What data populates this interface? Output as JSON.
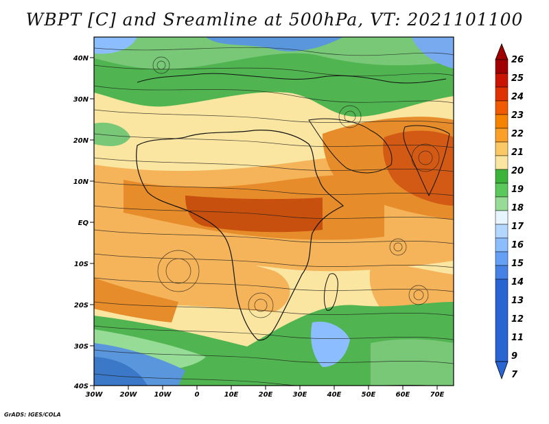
{
  "title": "WBPT [C] and Sreamline at 500hPa, VT: 2021101100",
  "footer": "GrADS: IGES/COLA",
  "map": {
    "lon_labels": [
      "30W",
      "20W",
      "10W",
      "0",
      "10E",
      "20E",
      "30E",
      "40E",
      "50E",
      "60E",
      "70E"
    ],
    "lat_labels": [
      "40N",
      "30N",
      "20N",
      "10N",
      "EQ",
      "10S",
      "20S",
      "30S",
      "40S"
    ]
  },
  "colorbar": {
    "levels": [
      "26",
      "25",
      "24",
      "23",
      "22",
      "21",
      "20",
      "19",
      "18",
      "17",
      "16",
      "15",
      "14",
      "13",
      "12",
      "11",
      "9",
      "7"
    ],
    "colors": [
      "#a00000",
      "#c81400",
      "#e03200",
      "#f05a00",
      "#f58200",
      "#faa028",
      "#fac864",
      "#fae6a0",
      "#3cb43c",
      "#5ac85a",
      "#96dc96",
      "#e6f5ff",
      "#b4d7ff",
      "#8cbeff",
      "#64a0f5",
      "#4682e6",
      "#2864d2"
    ]
  },
  "palette": {
    "deep_red": "#b4320a",
    "orange": "#e68c2a",
    "light_orange": "#f5b45a",
    "cream": "#fae6a0",
    "green": "#50b450",
    "light_green": "#96dc96",
    "blue": "#5a96dc"
  }
}
